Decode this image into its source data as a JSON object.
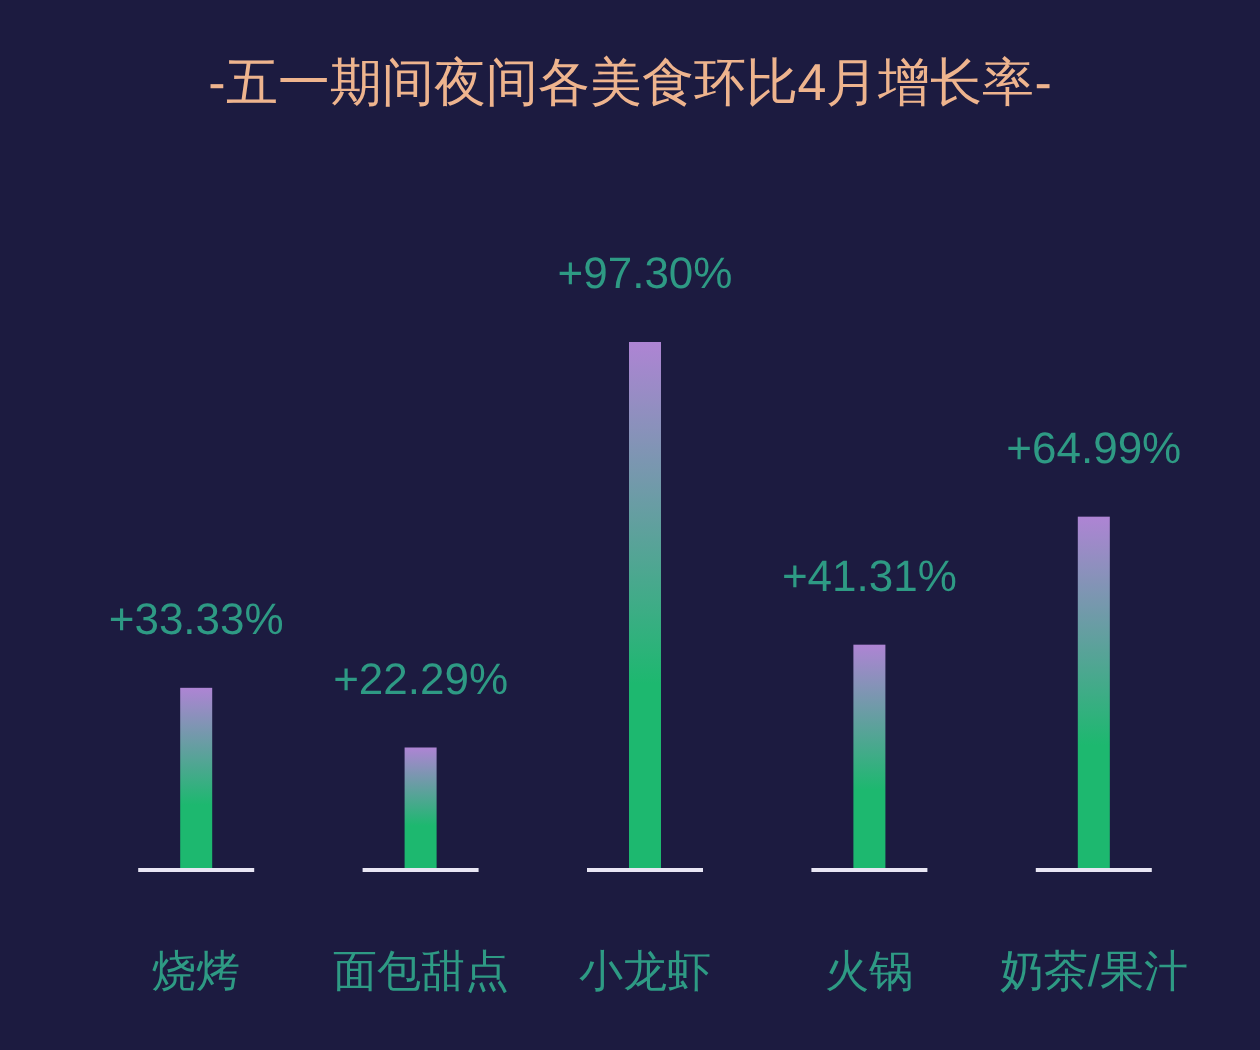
{
  "chart_data": {
    "type": "bar",
    "title": "-五一期间夜间各美食环比4月增长率-",
    "categories": [
      "烧烤",
      "面包甜点",
      "小龙虾",
      "火锅",
      "奶茶/果汁"
    ],
    "values": [
      33.33,
      22.29,
      97.3,
      41.31,
      64.99
    ],
    "value_labels": [
      "+33.33%",
      "+22.29%",
      "+97.30%",
      "+41.31%",
      "+64.99%"
    ],
    "color": "#1db86f"
  }
}
